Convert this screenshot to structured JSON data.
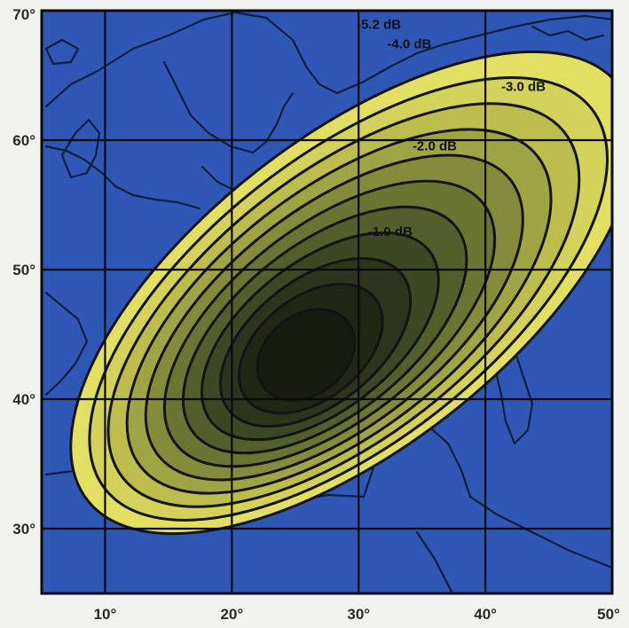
{
  "map": {
    "frame_extent": {
      "lon_min": 5,
      "lon_max": 50,
      "lat_min": 25,
      "lat_max": 70
    },
    "graticule_step_deg": 10,
    "colors": {
      "ocean": "#2f57b6",
      "grid": "#0b0b0b",
      "coastline": "#0e1f3f",
      "contour_line": "#141414",
      "levels": [
        "#e2df63",
        "#d4d25a",
        "#bdbd4e",
        "#9fa544",
        "#848c3b",
        "#6a7533",
        "#525e2b",
        "#3c4823",
        "#2c351b",
        "#1f2614",
        "#171c10"
      ]
    },
    "lat_labels": [
      {
        "lat": 70,
        "text": "70°"
      },
      {
        "lat": 60,
        "text": "60°"
      },
      {
        "lat": 50,
        "text": "50°"
      },
      {
        "lat": 40,
        "text": "40°"
      },
      {
        "lat": 30,
        "text": "30°"
      }
    ],
    "lon_labels": [
      {
        "lon": 10,
        "text": "10°"
      },
      {
        "lon": 20,
        "text": "20°"
      },
      {
        "lon": 30,
        "text": "30°"
      },
      {
        "lon": 40,
        "text": "40°"
      },
      {
        "lon": 50,
        "text": "50°"
      }
    ],
    "contour_labels": [
      {
        "text": "-5.2 dB",
        "lon": 31.6,
        "lat": 68.6
      },
      {
        "text": "-4.0 dB",
        "lon": 34.0,
        "lat": 67.1
      },
      {
        "text": "-3.0 dB",
        "lon": 43.0,
        "lat": 63.8
      },
      {
        "text": "-2.0 dB",
        "lon": 36.0,
        "lat": 59.2
      },
      {
        "text": "-1.0 dB",
        "lon": 32.5,
        "lat": 52.6
      }
    ]
  }
}
